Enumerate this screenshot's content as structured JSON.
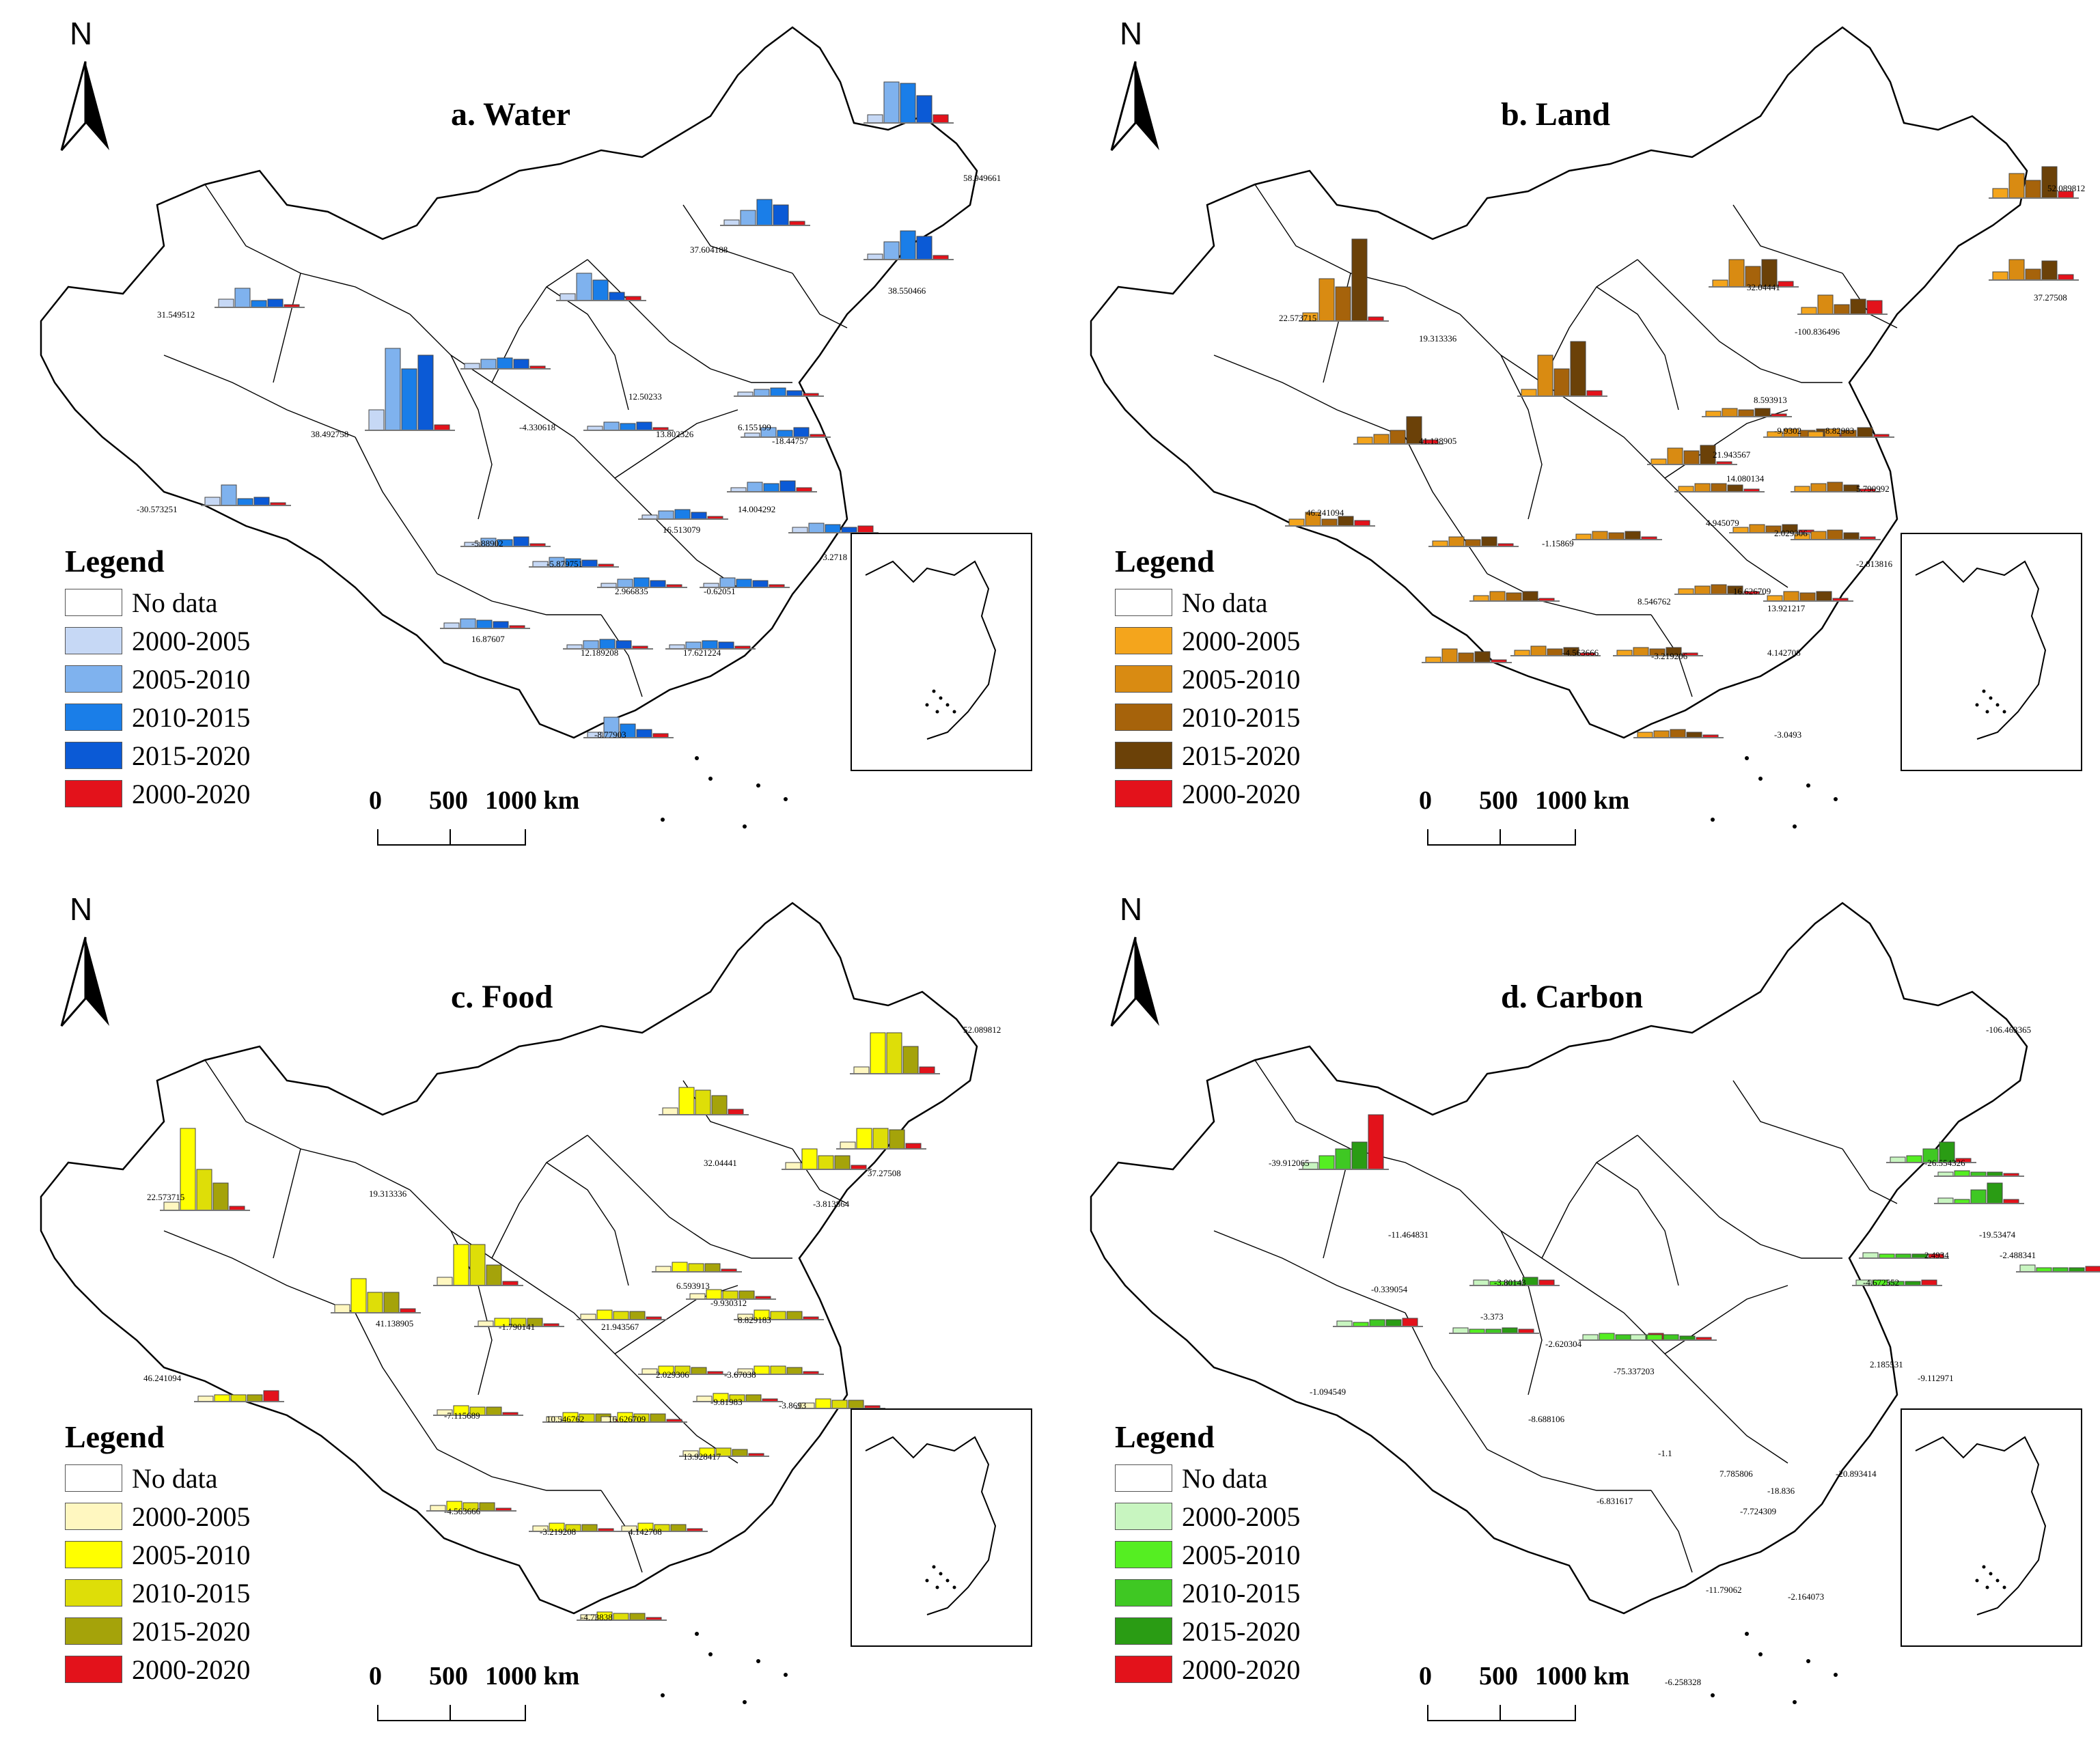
{
  "legend_title": "Legend",
  "legend_items": [
    "No data",
    "2000-2005",
    "2005-2010",
    "2010-2015",
    "2015-2020",
    "2000-2020"
  ],
  "scale": {
    "zero": "0",
    "mid": "500",
    "end": "1000 km"
  },
  "north_label": "N",
  "panels": [
    {
      "id": "water",
      "title": "a. Water",
      "colors": [
        "#ffffff",
        "#c6d8f5",
        "#7fb2ee",
        "#1a7ee8",
        "#0b5ad6",
        "#e3121b"
      ],
      "labels": [
        "58.949661",
        "37.604188",
        "38.550466",
        "31.549512",
        "38.492758",
        "-30.573251",
        "-4.330618",
        "12.50233",
        "6.155199",
        "13.802326",
        "-18.44757",
        "16.513079",
        "14.004292",
        "-5.88902",
        "-5.879751",
        "2.966835",
        "-0.62051",
        "16.87607",
        "12.189208",
        "17.621224",
        "-8.77903",
        "-3.2718"
      ],
      "glyphs": [
        {
          "v": [
            12,
            60,
            58,
            40,
            12
          ]
        },
        {
          "v": [
            8,
            22,
            38,
            30,
            6
          ]
        },
        {
          "v": [
            8,
            26,
            42,
            34,
            6
          ]
        },
        {
          "v": [
            12,
            28,
            10,
            12,
            4
          ]
        },
        {
          "v": [
            30,
            120,
            90,
            110,
            8
          ]
        },
        {
          "v": [
            12,
            30,
            10,
            12,
            4
          ]
        },
        {
          "v": [
            8,
            14,
            16,
            14,
            4
          ]
        },
        {
          "v": [
            10,
            40,
            30,
            12,
            6
          ]
        },
        {
          "v": [
            6,
            10,
            12,
            8,
            4
          ]
        },
        {
          "v": [
            6,
            12,
            10,
            12,
            4
          ]
        },
        {
          "v": [
            6,
            14,
            10,
            14,
            4
          ]
        },
        {
          "v": [
            6,
            12,
            14,
            10,
            4
          ]
        },
        {
          "v": [
            6,
            14,
            12,
            16,
            6
          ]
        },
        {
          "v": [
            6,
            12,
            10,
            14,
            4
          ]
        },
        {
          "v": [
            8,
            14,
            12,
            10,
            4
          ]
        },
        {
          "v": [
            6,
            12,
            14,
            10,
            4
          ]
        },
        {
          "v": [
            6,
            14,
            12,
            10,
            4
          ]
        },
        {
          "v": [
            8,
            14,
            12,
            10,
            4
          ]
        },
        {
          "v": [
            6,
            12,
            14,
            12,
            4
          ]
        },
        {
          "v": [
            6,
            10,
            12,
            10,
            4
          ]
        },
        {
          "v": [
            8,
            30,
            20,
            12,
            6
          ]
        },
        {
          "v": [
            8,
            14,
            12,
            8,
            10
          ]
        }
      ]
    },
    {
      "id": "land",
      "title": "b. Land",
      "colors": [
        "#ffffff",
        "#f4a51c",
        "#d98b12",
        "#a6630b",
        "#6b4108",
        "#e3121b"
      ],
      "labels": [
        "52.089812",
        "22.573715",
        "19.313336",
        "32.04441",
        "-100.836496",
        "37.27508",
        "41.138905",
        "46.241094",
        "8.593913",
        "21.943567",
        "-9.9302",
        "8.82983",
        "14.080134",
        "5.790992",
        "4.945079",
        "16.626709",
        "2.029306",
        "13.921217",
        "-1.15869",
        "-2.813816",
        "8.546762",
        "-4.563666",
        "-3.219206",
        "4.142708",
        "-3.0493"
      ],
      "glyphs": [
        {
          "v": [
            14,
            36,
            26,
            46,
            10
          ]
        },
        {
          "v": [
            12,
            62,
            50,
            120,
            6
          ]
        },
        {
          "v": [
            10,
            60,
            40,
            80,
            8
          ]
        },
        {
          "v": [
            10,
            40,
            30,
            40,
            8
          ]
        },
        {
          "v": [
            10,
            28,
            14,
            22,
            20
          ]
        },
        {
          "v": [
            12,
            30,
            16,
            28,
            8
          ]
        },
        {
          "v": [
            10,
            14,
            20,
            40,
            6
          ]
        },
        {
          "v": [
            10,
            20,
            10,
            14,
            8
          ]
        },
        {
          "v": [
            8,
            12,
            10,
            12,
            4
          ]
        },
        {
          "v": [
            8,
            24,
            20,
            28,
            4
          ]
        },
        {
          "v": [
            8,
            12,
            10,
            12,
            4
          ]
        },
        {
          "v": [
            8,
            12,
            10,
            14,
            4
          ]
        },
        {
          "v": [
            8,
            12,
            12,
            10,
            4
          ]
        },
        {
          "v": [
            8,
            12,
            14,
            10,
            4
          ]
        },
        {
          "v": [
            8,
            12,
            10,
            12,
            4
          ]
        },
        {
          "v": [
            8,
            12,
            14,
            12,
            4
          ]
        },
        {
          "v": [
            8,
            12,
            10,
            12,
            4
          ]
        },
        {
          "v": [
            8,
            14,
            12,
            14,
            4
          ]
        },
        {
          "v": [
            8,
            14,
            10,
            14,
            4
          ]
        },
        {
          "v": [
            8,
            12,
            14,
            10,
            4
          ]
        },
        {
          "v": [
            8,
            14,
            12,
            14,
            4
          ]
        },
        {
          "v": [
            8,
            20,
            14,
            16,
            4
          ]
        },
        {
          "v": [
            8,
            14,
            10,
            12,
            4
          ]
        },
        {
          "v": [
            8,
            12,
            10,
            12,
            4
          ]
        },
        {
          "v": [
            8,
            10,
            12,
            8,
            4
          ]
        }
      ]
    },
    {
      "id": "food",
      "title": "c. Food",
      "colors": [
        "#ffffff",
        "#fff7c0",
        "#ffff00",
        "#dede08",
        "#a5a30a",
        "#e3121b"
      ],
      "labels": [
        "52.089812",
        "22.573715",
        "19.313336",
        "32.04441",
        "37.27508",
        "-3.813864",
        "41.138905",
        "46.241094",
        "6.593913",
        "-9.930312",
        "8.829183",
        "-1.790141",
        "21.943567",
        "2.029306",
        "-3.67038",
        "-9.81983",
        "-7.115689",
        "10.546762",
        "16.626709",
        "13.928417",
        "-4.563666",
        "-3.219208",
        "4.142708",
        "-3.8693",
        "-4.73838"
      ],
      "glyphs": [
        {
          "v": [
            10,
            60,
            60,
            40,
            10
          ]
        },
        {
          "v": [
            12,
            120,
            60,
            40,
            6
          ]
        },
        {
          "v": [
            12,
            60,
            60,
            30,
            6
          ]
        },
        {
          "v": [
            10,
            40,
            36,
            28,
            8
          ]
        },
        {
          "v": [
            10,
            30,
            30,
            28,
            8
          ]
        },
        {
          "v": [
            10,
            30,
            20,
            20,
            6
          ]
        },
        {
          "v": [
            12,
            50,
            30,
            30,
            6
          ]
        },
        {
          "v": [
            8,
            10,
            10,
            10,
            16
          ]
        },
        {
          "v": [
            8,
            14,
            12,
            12,
            4
          ]
        },
        {
          "v": [
            8,
            14,
            12,
            12,
            4
          ]
        },
        {
          "v": [
            8,
            14,
            12,
            12,
            4
          ]
        },
        {
          "v": [
            8,
            12,
            12,
            12,
            4
          ]
        },
        {
          "v": [
            8,
            14,
            12,
            12,
            4
          ]
        },
        {
          "v": [
            8,
            12,
            12,
            10,
            4
          ]
        },
        {
          "v": [
            8,
            12,
            12,
            10,
            4
          ]
        },
        {
          "v": [
            8,
            12,
            10,
            10,
            4
          ]
        },
        {
          "v": [
            8,
            14,
            12,
            12,
            4
          ]
        },
        {
          "v": [
            8,
            14,
            12,
            12,
            4
          ]
        },
        {
          "v": [
            8,
            14,
            12,
            12,
            4
          ]
        },
        {
          "v": [
            8,
            12,
            12,
            10,
            4
          ]
        },
        {
          "v": [
            8,
            14,
            12,
            12,
            4
          ]
        },
        {
          "v": [
            8,
            12,
            10,
            10,
            4
          ]
        },
        {
          "v": [
            8,
            12,
            10,
            10,
            4
          ]
        },
        {
          "v": [
            8,
            14,
            12,
            12,
            4
          ]
        },
        {
          "v": [
            8,
            12,
            10,
            10,
            4
          ]
        }
      ]
    },
    {
      "id": "carbon",
      "title": "d. Carbon",
      "colors": [
        "#ffffff",
        "#c8f5c0",
        "#55ee22",
        "#3fc823",
        "#2a9c14",
        "#e3121b"
      ],
      "labels": [
        "-106.463365",
        "-26.554326",
        "-39.912065",
        "-19.53474",
        "-2.488341",
        "2.4934",
        "-11.464831",
        "-3.80143",
        "-3.373",
        "-4.672552",
        "-0.339054",
        "-2.620304",
        "-75.337203",
        "2.185531",
        "-1.094549",
        "-8.688106",
        "-1.1",
        "-9.112971",
        "7.785806",
        "-20.893414",
        "-6.831617",
        "-7.724309",
        "-3.877754",
        "-18.836",
        "2.2416",
        "-11.79062",
        "-2.164073",
        "-6.258328"
      ],
      "glyphs": [
        {
          "v": [
            10,
            6,
            6,
            6,
            8
          ]
        },
        {
          "v": [
            6,
            8,
            6,
            6,
            4
          ]
        },
        {
          "v": [
            10,
            20,
            30,
            40,
            80
          ]
        },
        {
          "v": [
            8,
            10,
            20,
            30,
            6
          ]
        },
        {
          "v": [
            8,
            6,
            20,
            30,
            6
          ]
        },
        {
          "v": [
            8,
            6,
            6,
            6,
            6
          ]
        },
        {
          "v": [
            8,
            6,
            10,
            10,
            12
          ]
        },
        {
          "v": [
            8,
            6,
            6,
            12,
            8
          ]
        },
        {
          "v": [
            8,
            6,
            6,
            8,
            6
          ]
        },
        {
          "v": [
            8,
            8,
            6,
            6,
            8
          ]
        },
        {
          "v": [
            8,
            10,
            8,
            8,
            10
          ]
        },
        {
          "v": [
            8,
            8,
            8,
            6,
            4
          ]
        }
      ]
    }
  ]
}
